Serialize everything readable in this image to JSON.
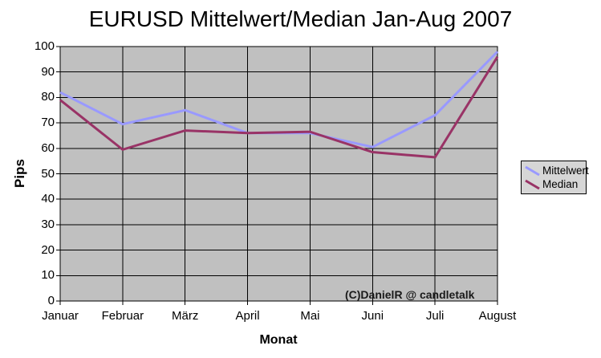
{
  "title": "EURUSD Mittelwert/Median Jan-Aug 2007",
  "watermark": "(C)DanielR @ candletalk",
  "chart_data": {
    "type": "line",
    "title": "EURUSD Mittelwert/Median Jan-Aug 2007",
    "categories": [
      "Januar",
      "Februar",
      "März",
      "April",
      "Mai",
      "Juni",
      "Juli",
      "August"
    ],
    "series": [
      {
        "name": "Mittelwert",
        "color": "#9999ff",
        "values": [
          82,
          69.5,
          75,
          66,
          66,
          60.5,
          73,
          98
        ]
      },
      {
        "name": "Median",
        "color": "#993366",
        "values": [
          79,
          59.5,
          67,
          66,
          66.5,
          58.5,
          56.5,
          96
        ]
      }
    ],
    "xlabel": "Monat",
    "ylabel": "Pips",
    "ylim": [
      0,
      100
    ],
    "yticks": [
      0,
      10,
      20,
      30,
      40,
      50,
      60,
      70,
      80,
      90,
      100
    ],
    "grid": true,
    "legend_position": "right",
    "plot_bg_color": "#c0c0c0",
    "gridline_color": "#000000",
    "axis_color": "#000000"
  }
}
